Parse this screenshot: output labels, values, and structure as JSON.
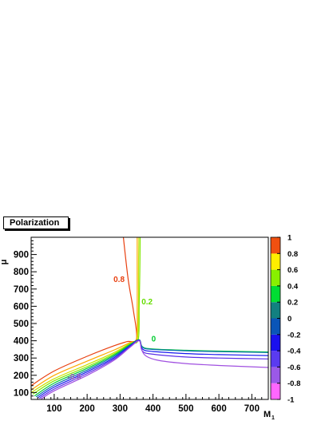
{
  "chart_data": {
    "type": "line",
    "title": "Polarization",
    "xlabel": "M1",
    "ylabel": "μ",
    "xlim": [
      30,
      750
    ],
    "ylim": [
      60,
      1000
    ],
    "x_ticks": [
      100,
      200,
      300,
      400,
      500,
      600,
      700
    ],
    "y_ticks": [
      100,
      200,
      300,
      400,
      500,
      600,
      700,
      800,
      900
    ],
    "colorbar": {
      "min": -1,
      "max": 1,
      "levels": [
        -1,
        -0.8,
        -0.6,
        -0.4,
        -0.2,
        0,
        0.2,
        0.4,
        0.6,
        0.8,
        1
      ],
      "tick_labels": [
        "1",
        "0.8",
        "0.6",
        "0.4",
        "0.2",
        "0",
        "-0.2",
        "-0.4",
        "-0.6",
        "-0.8",
        "-1"
      ],
      "band_colors": [
        "#ff66ff",
        "#9b59e8",
        "#5a3bf0",
        "#1a10ee",
        "#0a55b8",
        "#128080",
        "#00dd33",
        "#88f000",
        "#ffee00",
        "#ff9c00",
        "#f05010"
      ]
    },
    "series": [
      {
        "level": 0.8,
        "color": "#e84010",
        "points": [
          [
            30,
            140
          ],
          [
            100,
            225
          ],
          [
            200,
            310
          ],
          [
            280,
            370
          ],
          [
            320,
            395
          ],
          [
            350,
            412
          ],
          [
            340,
            580
          ],
          [
            325,
            750
          ],
          [
            310,
            1000
          ]
        ]
      },
      {
        "level": 0.6,
        "color": "#ffa800",
        "points": [
          [
            30,
            115
          ],
          [
            100,
            200
          ],
          [
            200,
            282
          ],
          [
            280,
            345
          ],
          [
            330,
            390
          ],
          [
            350,
            410
          ],
          [
            352,
            600
          ],
          [
            352,
            800
          ],
          [
            352,
            1000
          ]
        ]
      },
      {
        "level": 0.4,
        "color": "#c8e000",
        "points": [
          [
            30,
            100
          ],
          [
            100,
            180
          ],
          [
            200,
            262
          ],
          [
            280,
            330
          ],
          [
            330,
            385
          ],
          [
            352,
            408
          ],
          [
            356,
            600
          ],
          [
            356,
            800
          ],
          [
            357,
            1000
          ]
        ]
      },
      {
        "level": 0.2,
        "color": "#80e800",
        "points": [
          [
            35,
            90
          ],
          [
            100,
            168
          ],
          [
            200,
            250
          ],
          [
            280,
            322
          ],
          [
            330,
            382
          ],
          [
            355,
            407
          ],
          [
            358,
            600
          ],
          [
            360,
            800
          ],
          [
            361,
            1000
          ]
        ]
      },
      {
        "level": 0,
        "color": "#00cc30",
        "points": [
          [
            40,
            80
          ],
          [
            100,
            155
          ],
          [
            200,
            240
          ],
          [
            280,
            315
          ],
          [
            330,
            378
          ],
          [
            358,
            406
          ],
          [
            368,
            365
          ],
          [
            400,
            352
          ],
          [
            500,
            345
          ],
          [
            600,
            340
          ],
          [
            750,
            335
          ]
        ]
      },
      {
        "level": -0.2,
        "color": "#0a6eb0",
        "points": [
          [
            45,
            75
          ],
          [
            100,
            143
          ],
          [
            200,
            230
          ],
          [
            280,
            308
          ],
          [
            330,
            374
          ],
          [
            358,
            405
          ],
          [
            368,
            362
          ],
          [
            400,
            350
          ],
          [
            500,
            342
          ],
          [
            600,
            337
          ],
          [
            750,
            332
          ]
        ]
      },
      {
        "level": -0.4,
        "color": "#1818ee",
        "points": [
          [
            50,
            70
          ],
          [
            100,
            132
          ],
          [
            200,
            220
          ],
          [
            280,
            300
          ],
          [
            330,
            370
          ],
          [
            358,
            404
          ],
          [
            368,
            352
          ],
          [
            400,
            338
          ],
          [
            500,
            326
          ],
          [
            600,
            320
          ],
          [
            750,
            314
          ]
        ]
      },
      {
        "level": -0.6,
        "color": "#5b2ee8",
        "points": [
          [
            55,
            66
          ],
          [
            100,
            120
          ],
          [
            200,
            210
          ],
          [
            280,
            292
          ],
          [
            330,
            366
          ],
          [
            358,
            402
          ],
          [
            368,
            340
          ],
          [
            400,
            322
          ],
          [
            500,
            306
          ],
          [
            600,
            300
          ],
          [
            750,
            295
          ]
        ]
      },
      {
        "level": -0.8,
        "color": "#a050e0",
        "points": [
          [
            60,
            62
          ],
          [
            100,
            110
          ],
          [
            200,
            200
          ],
          [
            280,
            285
          ],
          [
            330,
            362
          ],
          [
            358,
            400
          ],
          [
            365,
            350
          ],
          [
            380,
            310
          ],
          [
            420,
            285
          ],
          [
            500,
            268
          ],
          [
            600,
            257
          ],
          [
            750,
            245
          ]
        ]
      }
    ],
    "annotations": [
      {
        "text": "0.8",
        "x": 280,
        "y": 740,
        "color": "#e84010"
      },
      {
        "text": "0.2",
        "x": 365,
        "y": 610,
        "color": "#66dd00"
      },
      {
        "text": "0",
        "x": 395,
        "y": 395,
        "color": "#00cc30"
      },
      {
        "text": "-0.8",
        "x": 140,
        "y": 175,
        "color": "#9b59b6"
      }
    ]
  }
}
